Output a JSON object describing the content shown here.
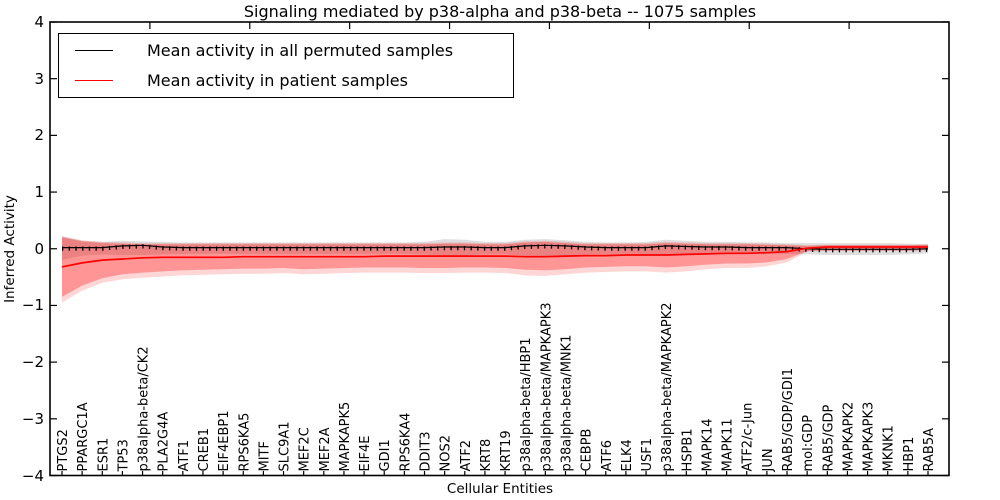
{
  "title": "Signaling mediated by p38-alpha and p38-beta -- 1075 samples",
  "axes": {
    "xlabel": "Cellular Entities",
    "ylabel": "Inferred Activity",
    "ytick_labels": [
      "4",
      "3",
      "2",
      "1",
      "0",
      "−1",
      "−2",
      "−3",
      "−4"
    ],
    "ytick_values": [
      4,
      3,
      2,
      1,
      0,
      -1,
      -2,
      -3,
      -4
    ],
    "ylim": [
      -4,
      4
    ]
  },
  "chart_data": {
    "type": "line",
    "title": "Signaling mediated by p38-alpha and p38-beta -- 1075 samples",
    "xlabel": "Cellular Entities",
    "ylabel": "Inferred Activity",
    "ylim": [
      -4,
      4
    ],
    "grid": false,
    "legend_position": "upper left",
    "categories": [
      "PTGS2",
      "PPARGC1A",
      "ESR1",
      "TP53",
      "p38alpha-beta/CK2",
      "PLA2G4A",
      "ATF1",
      "CREB1",
      "EIF4EBP1",
      "RPS6KA5",
      "MITF",
      "SLC9A1",
      "MEF2C",
      "MEF2A",
      "MAPKAPK5",
      "EIF4E",
      "GDI1",
      "RPS6KA4",
      "DDIT3",
      "NOS2",
      "ATF2",
      "KRT8",
      "KRT19",
      "p38alpha-beta/HBP1",
      "p38alpha-beta/MAPKAPK3",
      "p38alpha-beta/MNK1",
      "CEBPB",
      "ATF6",
      "ELK4",
      "USF1",
      "p38alpha-beta/MAPKAPK2",
      "HSPB1",
      "MAPK14",
      "MAPK11",
      "ATF2/c-Jun",
      "JUN",
      "RAB5/GDP/GDI1",
      "mol:GDP",
      "RAB5/GDP",
      "MAPKAPK2",
      "MAPKAPK3",
      "MKNK1",
      "HBP1",
      "RAB5A"
    ],
    "series": [
      {
        "name": "Mean activity in all permuted samples",
        "color": "#000000",
        "values": [
          0.02,
          0.02,
          0.02,
          0.05,
          0.06,
          0.03,
          0.02,
          0.02,
          0.02,
          0.02,
          0.02,
          0.02,
          0.02,
          0.02,
          0.02,
          0.02,
          0.02,
          0.02,
          0.02,
          0.03,
          0.03,
          0.02,
          0.02,
          0.05,
          0.06,
          0.05,
          0.03,
          0.02,
          0.02,
          0.02,
          0.05,
          0.04,
          0.03,
          0.03,
          0.02,
          0.02,
          0.02,
          0.0,
          -0.01,
          -0.01,
          -0.01,
          -0.01,
          -0.01,
          0.0
        ]
      },
      {
        "name": "Mean activity in patient samples",
        "color": "#ff0000",
        "values": [
          -0.32,
          -0.25,
          -0.2,
          -0.18,
          -0.16,
          -0.15,
          -0.15,
          -0.15,
          -0.15,
          -0.14,
          -0.14,
          -0.14,
          -0.14,
          -0.14,
          -0.14,
          -0.14,
          -0.13,
          -0.13,
          -0.13,
          -0.13,
          -0.13,
          -0.13,
          -0.13,
          -0.14,
          -0.14,
          -0.13,
          -0.12,
          -0.12,
          -0.11,
          -0.11,
          -0.11,
          -0.1,
          -0.09,
          -0.08,
          -0.08,
          -0.07,
          -0.05,
          0.01,
          0.03,
          0.03,
          0.03,
          0.03,
          0.03,
          0.03
        ]
      }
    ],
    "bands": [
      {
        "name": "permuted-samples-spread",
        "color": "#888888",
        "opacity": 0.28,
        "upper": [
          0.22,
          0.14,
          0.12,
          0.14,
          0.13,
          0.12,
          0.11,
          0.11,
          0.11,
          0.11,
          0.11,
          0.11,
          0.11,
          0.11,
          0.11,
          0.11,
          0.11,
          0.11,
          0.12,
          0.17,
          0.16,
          0.12,
          0.12,
          0.16,
          0.17,
          0.15,
          0.12,
          0.11,
          0.11,
          0.12,
          0.16,
          0.14,
          0.12,
          0.12,
          0.11,
          0.11,
          0.1,
          0.1,
          0.1,
          0.1,
          0.1,
          0.1,
          0.09,
          0.08
        ],
        "lower": [
          -0.2,
          -0.12,
          -0.1,
          -0.11,
          -0.11,
          -0.1,
          -0.09,
          -0.09,
          -0.09,
          -0.09,
          -0.09,
          -0.09,
          -0.09,
          -0.09,
          -0.09,
          -0.09,
          -0.09,
          -0.09,
          -0.1,
          -0.12,
          -0.12,
          -0.1,
          -0.1,
          -0.12,
          -0.13,
          -0.12,
          -0.1,
          -0.09,
          -0.09,
          -0.1,
          -0.12,
          -0.11,
          -0.1,
          -0.1,
          -0.09,
          -0.09,
          -0.09,
          -0.1,
          -0.11,
          -0.11,
          -0.11,
          -0.11,
          -0.1,
          -0.08
        ]
      },
      {
        "name": "patient-samples-spread-outer",
        "color": "#ff0000",
        "opacity": 0.16,
        "upper": [
          0.22,
          0.15,
          0.12,
          0.11,
          0.1,
          0.1,
          0.1,
          0.1,
          0.1,
          0.1,
          0.1,
          0.1,
          0.1,
          0.1,
          0.1,
          0.1,
          0.1,
          0.1,
          0.1,
          0.11,
          0.11,
          0.1,
          0.1,
          0.13,
          0.14,
          0.12,
          0.1,
          0.1,
          0.1,
          0.1,
          0.12,
          0.11,
          0.1,
          0.1,
          0.1,
          0.09,
          0.08,
          0.06,
          0.07,
          0.07,
          0.07,
          0.07,
          0.07,
          0.08
        ],
        "lower": [
          -0.95,
          -0.74,
          -0.6,
          -0.54,
          -0.51,
          -0.49,
          -0.47,
          -0.46,
          -0.45,
          -0.44,
          -0.44,
          -0.43,
          -0.45,
          -0.44,
          -0.43,
          -0.42,
          -0.42,
          -0.42,
          -0.43,
          -0.43,
          -0.42,
          -0.42,
          -0.43,
          -0.47,
          -0.48,
          -0.45,
          -0.42,
          -0.41,
          -0.4,
          -0.4,
          -0.42,
          -0.4,
          -0.36,
          -0.34,
          -0.34,
          -0.31,
          -0.24,
          -0.05,
          -0.04,
          -0.04,
          -0.04,
          -0.04,
          -0.04,
          -0.03
        ]
      },
      {
        "name": "patient-samples-spread-inner",
        "color": "#ff0000",
        "opacity": 0.3,
        "upper": [
          0.2,
          0.13,
          0.1,
          0.09,
          0.08,
          0.08,
          0.08,
          0.08,
          0.08,
          0.08,
          0.08,
          0.08,
          0.08,
          0.08,
          0.08,
          0.08,
          0.08,
          0.08,
          0.08,
          0.09,
          0.09,
          0.08,
          0.08,
          0.11,
          0.12,
          0.1,
          0.08,
          0.08,
          0.08,
          0.08,
          0.1,
          0.09,
          0.08,
          0.08,
          0.08,
          0.07,
          0.06,
          0.05,
          0.06,
          0.06,
          0.06,
          0.06,
          0.06,
          0.07
        ],
        "lower": [
          -0.85,
          -0.65,
          -0.52,
          -0.45,
          -0.42,
          -0.4,
          -0.38,
          -0.37,
          -0.36,
          -0.35,
          -0.35,
          -0.34,
          -0.36,
          -0.35,
          -0.34,
          -0.33,
          -0.33,
          -0.33,
          -0.34,
          -0.34,
          -0.33,
          -0.33,
          -0.34,
          -0.37,
          -0.38,
          -0.36,
          -0.33,
          -0.32,
          -0.31,
          -0.31,
          -0.33,
          -0.31,
          -0.28,
          -0.26,
          -0.26,
          -0.24,
          -0.18,
          -0.04,
          -0.03,
          -0.03,
          -0.03,
          -0.03,
          -0.03,
          -0.02
        ]
      }
    ]
  },
  "legend": {
    "items": [
      {
        "label": "Mean activity in all permuted samples",
        "color": "#000000"
      },
      {
        "label": "Mean activity in patient samples",
        "color": "#ff0000"
      }
    ]
  }
}
